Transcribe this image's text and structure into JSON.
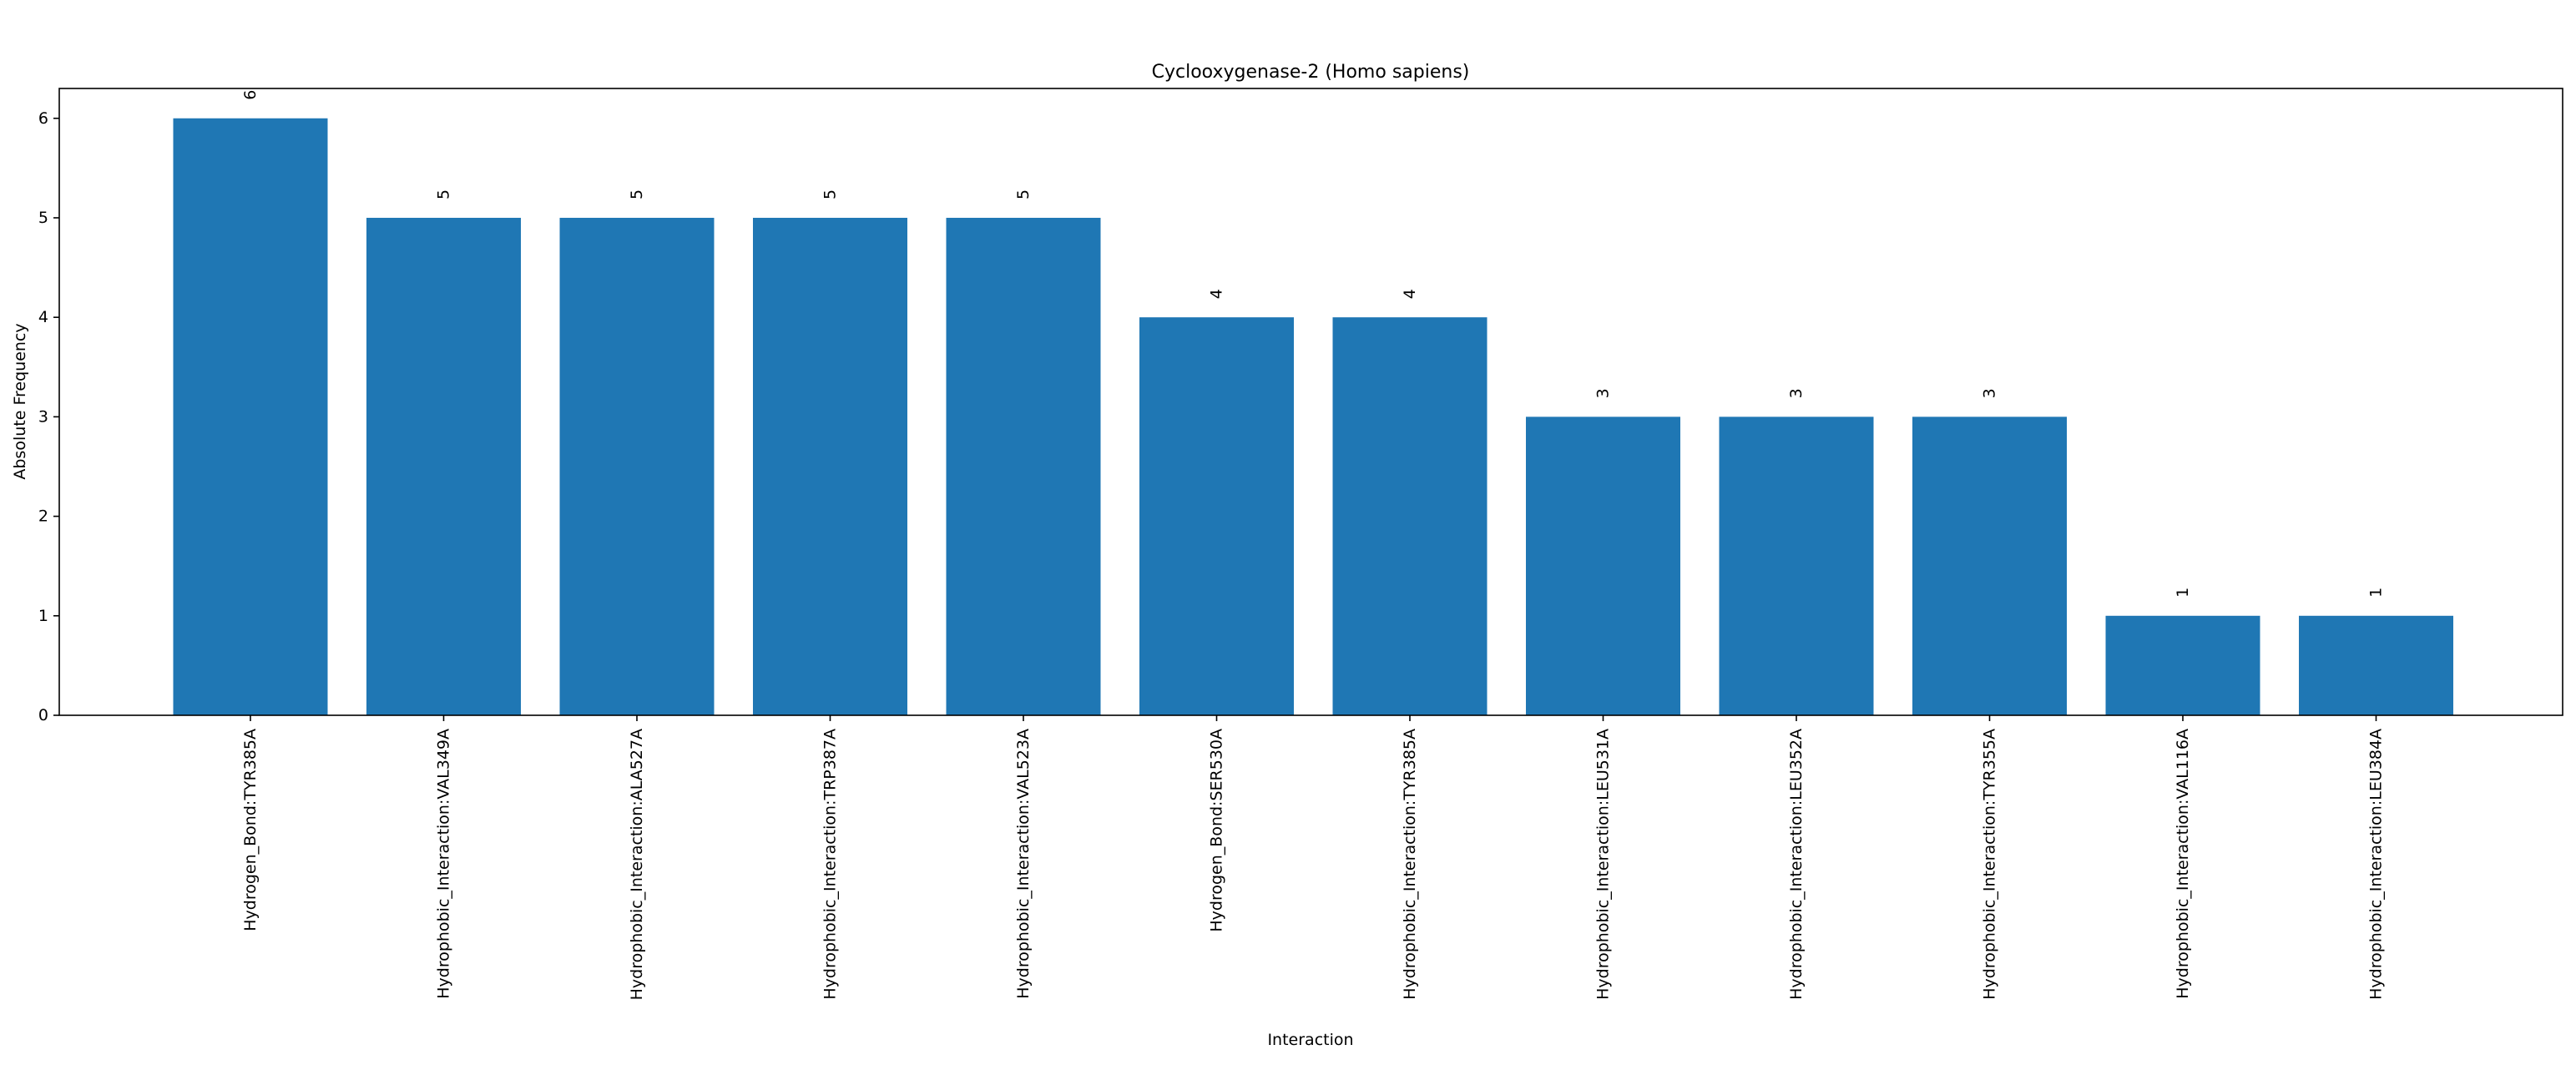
{
  "chart_data": {
    "type": "bar",
    "title": "Cyclooxygenase-2 (Homo sapiens)",
    "xlabel": "Interaction",
    "ylabel": "Absolute Frequency",
    "categories": [
      "Hydrogen_Bond:TYR385A",
      "Hydrophobic_Interaction:VAL349A",
      "Hydrophobic_Interaction:ALA527A",
      "Hydrophobic_Interaction:TRP387A",
      "Hydrophobic_Interaction:VAL523A",
      "Hydrogen_Bond:SER530A",
      "Hydrophobic_Interaction:TYR385A",
      "Hydrophobic_Interaction:LEU531A",
      "Hydrophobic_Interaction:LEU352A",
      "Hydrophobic_Interaction:TYR355A",
      "Hydrophobic_Interaction:VAL116A",
      "Hydrophobic_Interaction:LEU384A"
    ],
    "values": [
      6,
      5,
      5,
      5,
      5,
      4,
      4,
      3,
      3,
      3,
      1,
      1
    ],
    "data_labels": [
      "6",
      "5",
      "5",
      "5",
      "5",
      "4",
      "4",
      "3",
      "3",
      "3",
      "1",
      "1"
    ],
    "yticks": [
      "0",
      "1",
      "2",
      "3",
      "4",
      "5",
      "6"
    ],
    "ylim": [
      0,
      6.3
    ],
    "grid": false,
    "bar_color": "#1f77b4"
  }
}
